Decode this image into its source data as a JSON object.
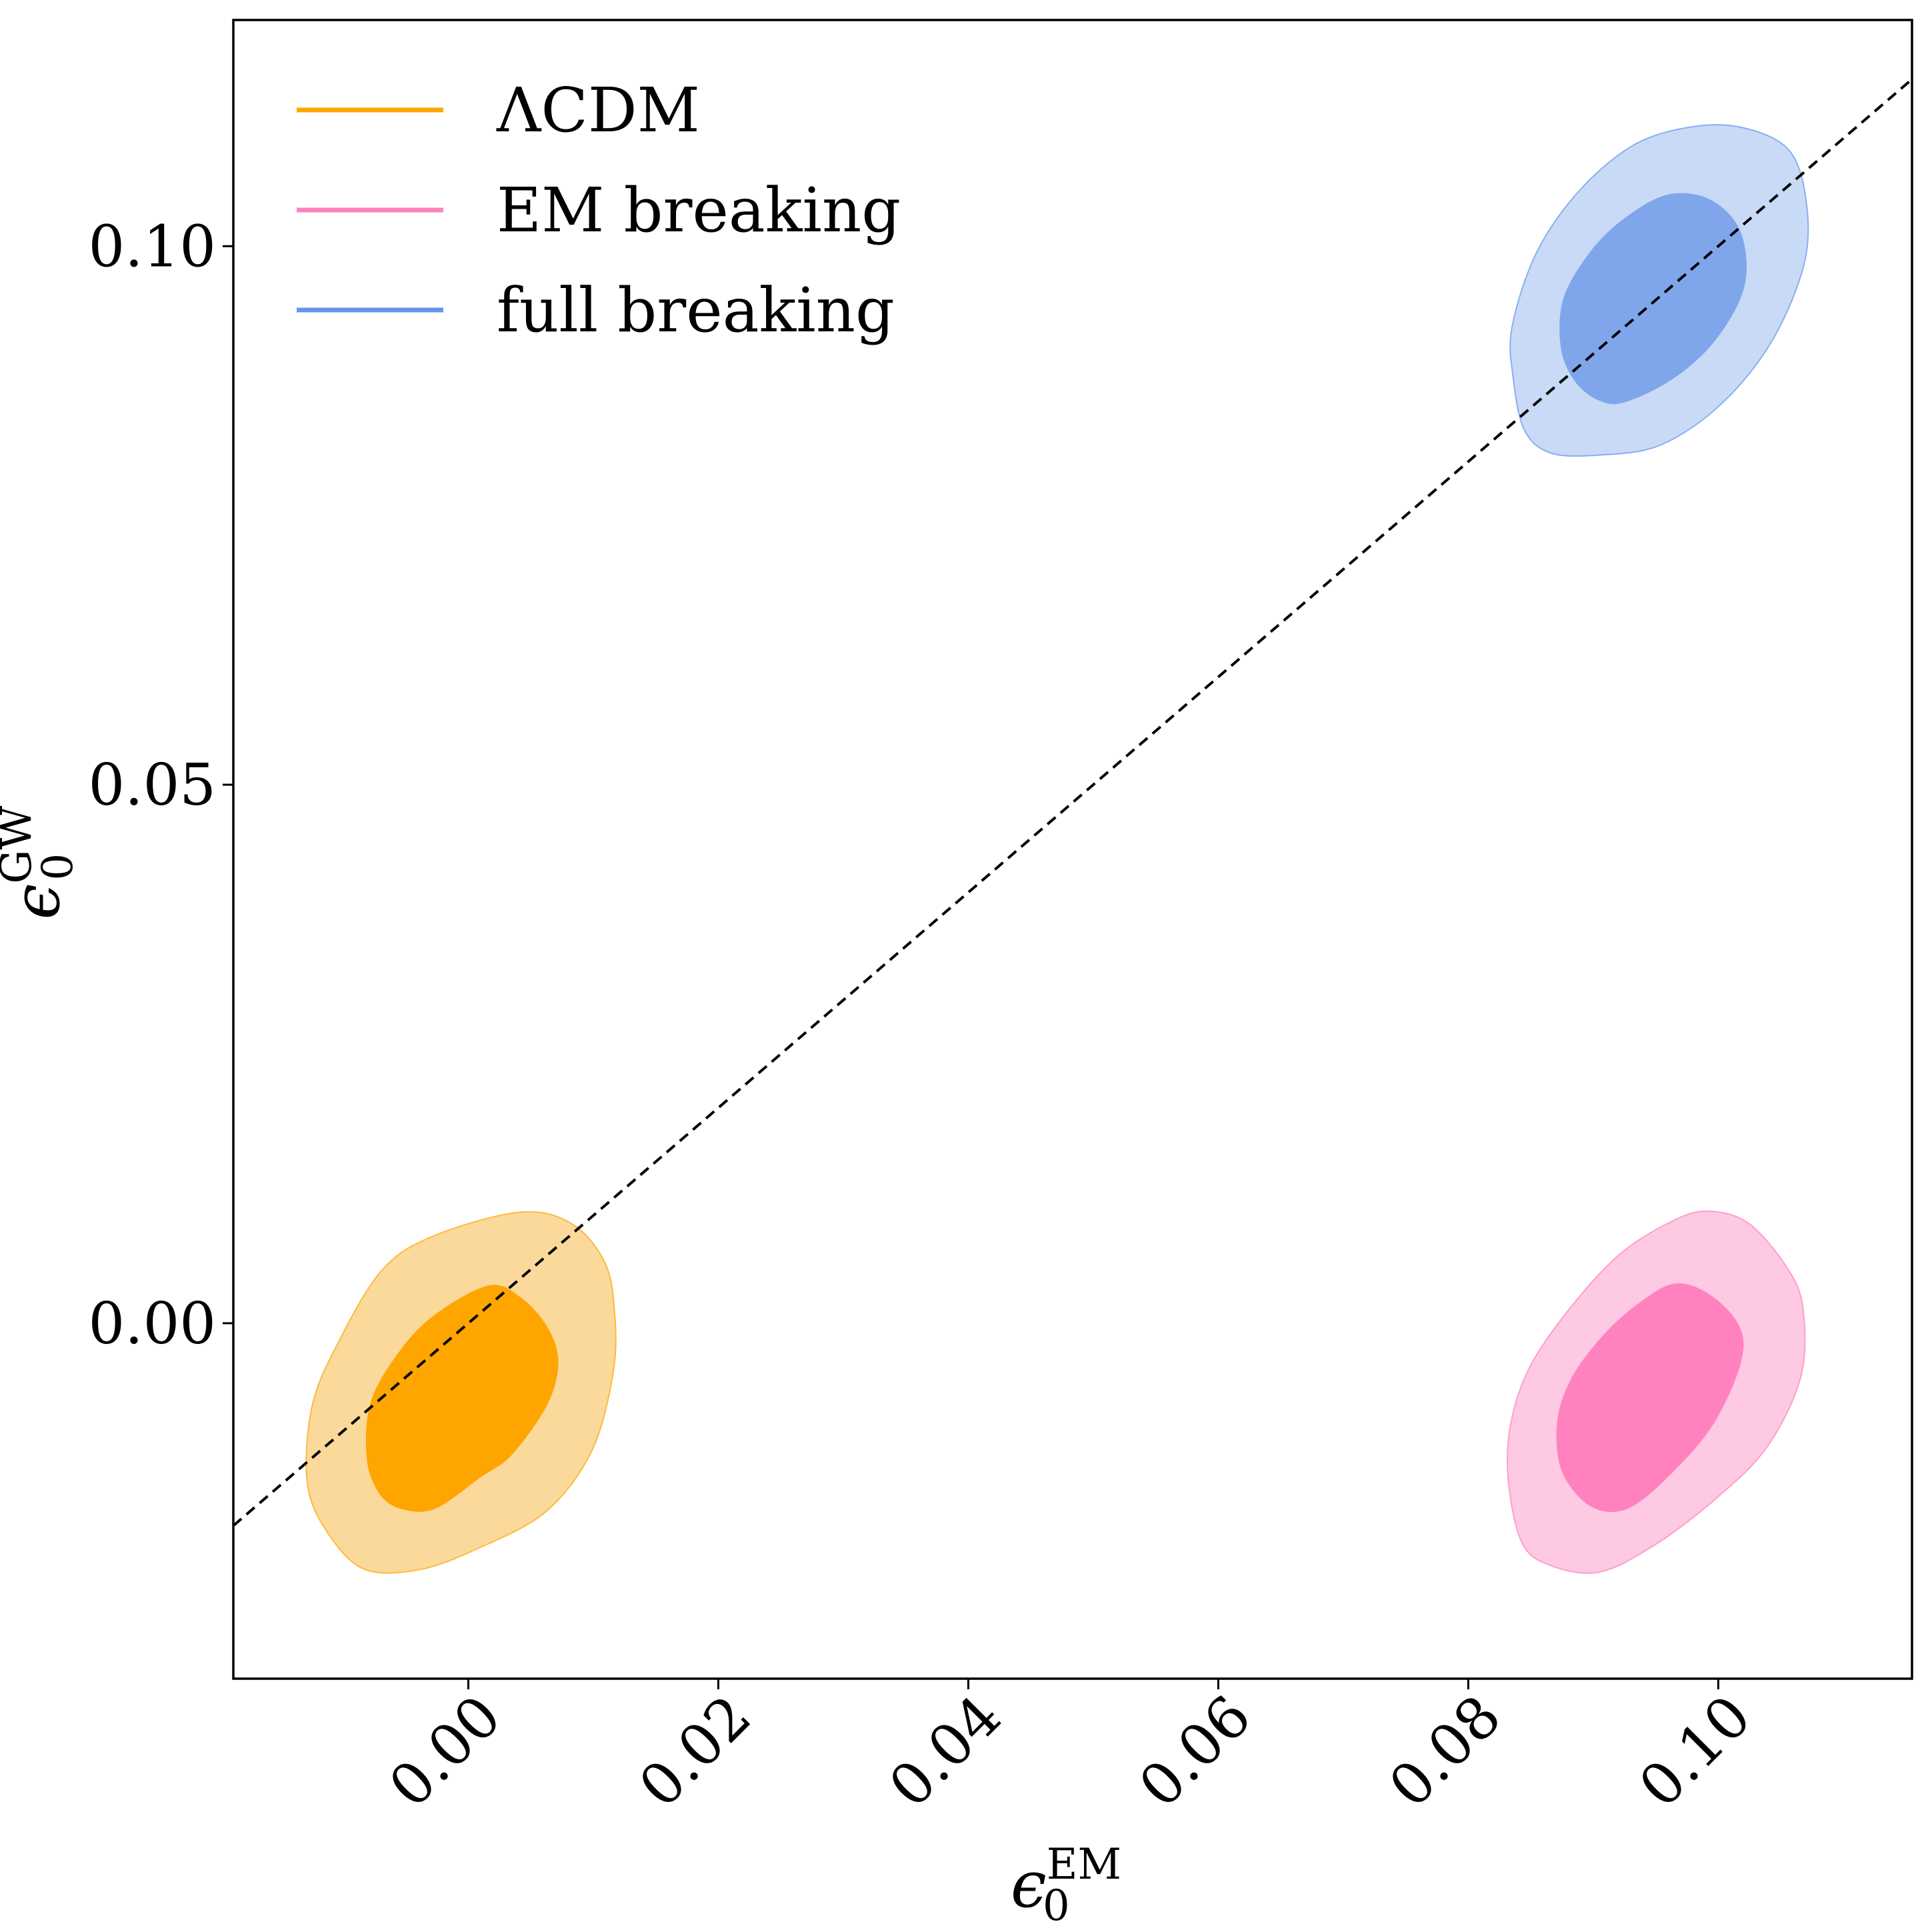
{
  "chart_data": {
    "type": "contour",
    "title": "",
    "xlabel": {
      "symbol": "ϵ",
      "sup": "EM",
      "sub": "0"
    },
    "ylabel": {
      "symbol": "ϵ",
      "sup": "GW",
      "sub": "0"
    },
    "xlim": [
      -0.0188,
      0.1155
    ],
    "ylim": [
      -0.033,
      0.121
    ],
    "xticks": [
      0.0,
      0.02,
      0.04,
      0.06,
      0.08,
      0.1
    ],
    "xtick_labels": [
      "0.00",
      "0.02",
      "0.04",
      "0.06",
      "0.08",
      "0.10"
    ],
    "yticks": [
      0.0,
      0.05,
      0.1
    ],
    "ytick_labels": [
      "0.00",
      "0.05",
      "0.10"
    ],
    "legend_position": "top-left",
    "reference_line": {
      "label": "ϵ0GW = ϵ0EM",
      "style": "dashed",
      "color": "#000000",
      "slope": 1,
      "intercept": 0
    },
    "series": [
      {
        "name": "ΛCDM",
        "color": "#ffa500",
        "fill_outer": "#fbd99b",
        "fill_inner": "#ffa500",
        "contour_1sigma": [
          [
            0.0016,
            0.0035
          ],
          [
            0.0043,
            0.0023
          ],
          [
            0.0064,
            -0.0005
          ],
          [
            0.0072,
            -0.0037
          ],
          [
            0.0063,
            -0.0076
          ],
          [
            0.0035,
            -0.0122
          ],
          [
            0.001,
            -0.0143
          ],
          [
            -0.0026,
            -0.0172
          ],
          [
            -0.0052,
            -0.0173
          ],
          [
            -0.007,
            -0.016
          ],
          [
            -0.0081,
            -0.0128
          ],
          [
            -0.0079,
            -0.0077
          ],
          [
            -0.006,
            -0.0034
          ],
          [
            -0.003,
            0.0005
          ]
        ],
        "contour_2sigma": [
          [
            0.004,
            0.0103
          ],
          [
            0.0082,
            0.0093
          ],
          [
            0.0109,
            0.0057
          ],
          [
            0.0117,
            0.0011
          ],
          [
            0.0116,
            -0.0045
          ],
          [
            0.0099,
            -0.0118
          ],
          [
            0.0062,
            -0.0175
          ],
          [
            0.0006,
            -0.021
          ],
          [
            -0.004,
            -0.0229
          ],
          [
            -0.0084,
            -0.0228
          ],
          [
            -0.0114,
            -0.0192
          ],
          [
            -0.0129,
            -0.0147
          ],
          [
            -0.0125,
            -0.0077
          ],
          [
            -0.0105,
            -0.002
          ],
          [
            -0.007,
            0.0048
          ],
          [
            -0.003,
            0.008
          ]
        ]
      },
      {
        "name": "EM breaking",
        "color": "#ff82bf",
        "fill_outer": "#fec9e3",
        "fill_inner": "#ff82bf",
        "contour_1sigma": [
          [
            0.0966,
            0.0037
          ],
          [
            0.0994,
            0.0026
          ],
          [
            0.1017,
            -0.0003
          ],
          [
            0.1018,
            -0.0037
          ],
          [
            0.0997,
            -0.0092
          ],
          [
            0.0964,
            -0.0138
          ],
          [
            0.0928,
            -0.0172
          ],
          [
            0.0898,
            -0.017
          ],
          [
            0.0875,
            -0.0138
          ],
          [
            0.0871,
            -0.0093
          ],
          [
            0.0882,
            -0.0052
          ],
          [
            0.0908,
            -0.0011
          ],
          [
            0.0938,
            0.002
          ]
        ],
        "contour_2sigma": [
          [
            0.099,
            0.0104
          ],
          [
            0.1024,
            0.0093
          ],
          [
            0.1056,
            0.005
          ],
          [
            0.1068,
            0.0012
          ],
          [
            0.1066,
            -0.005
          ],
          [
            0.1039,
            -0.0115
          ],
          [
            0.0998,
            -0.0163
          ],
          [
            0.0949,
            -0.0206
          ],
          [
            0.0905,
            -0.0231
          ],
          [
            0.0866,
            -0.0225
          ],
          [
            0.0843,
            -0.0204
          ],
          [
            0.0832,
            -0.0146
          ],
          [
            0.0834,
            -0.0093
          ],
          [
            0.0849,
            -0.0041
          ],
          [
            0.088,
            0.0012
          ],
          [
            0.092,
            0.0063
          ],
          [
            0.096,
            0.0093
          ]
        ]
      },
      {
        "name": "full breaking",
        "color": "#6495ed",
        "fill_outer": "#c9daf6",
        "fill_inner": "#7fa6eb",
        "contour_1sigma": [
          [
            0.096,
            0.1048
          ],
          [
            0.0994,
            0.1043
          ],
          [
            0.1018,
            0.1013
          ],
          [
            0.1021,
            0.0963
          ],
          [
            0.0998,
            0.0913
          ],
          [
            0.0964,
            0.0877
          ],
          [
            0.0925,
            0.0855
          ],
          [
            0.0904,
            0.0857
          ],
          [
            0.0885,
            0.0875
          ],
          [
            0.0874,
            0.0906
          ],
          [
            0.0876,
            0.0951
          ],
          [
            0.0897,
            0.0994
          ],
          [
            0.0925,
            0.1026
          ]
        ],
        "contour_2sigma": [
          [
            0.098,
            0.1111
          ],
          [
            0.102,
            0.111
          ],
          [
            0.1056,
            0.109
          ],
          [
            0.107,
            0.1045
          ],
          [
            0.1069,
            0.0985
          ],
          [
            0.1043,
            0.0912
          ],
          [
            0.1002,
            0.0853
          ],
          [
            0.0953,
            0.0815
          ],
          [
            0.0904,
            0.0806
          ],
          [
            0.0866,
            0.0808
          ],
          [
            0.0845,
            0.0829
          ],
          [
            0.0836,
            0.0877
          ],
          [
            0.0835,
            0.0925
          ],
          [
            0.0855,
            0.0995
          ],
          [
            0.089,
            0.1053
          ],
          [
            0.0934,
            0.1095
          ]
        ]
      }
    ]
  }
}
